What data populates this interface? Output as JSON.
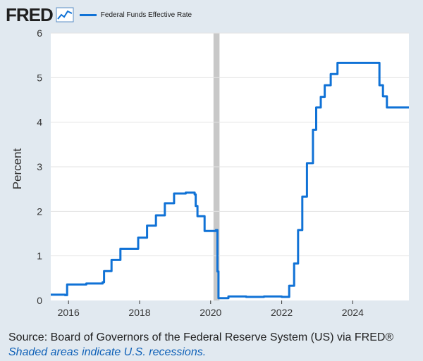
{
  "header": {
    "logo_text": "FRED",
    "logo_icon": "line-chart-icon",
    "legend_label": "Federal Funds Effective Rate"
  },
  "colors": {
    "background": "#e1e9f0",
    "plot_area": "#ffffff",
    "series": "#1072d6",
    "recession_shade": "#c8c8c8"
  },
  "chart_data": {
    "type": "line",
    "title": "",
    "xlabel": "",
    "ylabel": "Percent",
    "ylim": [
      0,
      6
    ],
    "xlim": [
      2015.5,
      2025.58
    ],
    "yticks": [
      "0",
      "1",
      "2",
      "3",
      "4",
      "5",
      "6"
    ],
    "xticks": [
      "2016",
      "2018",
      "2020",
      "2022",
      "2024"
    ],
    "grid": true,
    "legend": "top-left",
    "recessions": [
      [
        2020.08,
        2020.25
      ]
    ],
    "series": [
      {
        "name": "Federal Funds Effective Rate",
        "points": [
          [
            2015.5,
            0.13
          ],
          [
            2015.9,
            0.12
          ],
          [
            2015.96,
            0.36
          ],
          [
            2016.5,
            0.38
          ],
          [
            2016.96,
            0.41
          ],
          [
            2017.0,
            0.66
          ],
          [
            2017.21,
            0.91
          ],
          [
            2017.46,
            1.16
          ],
          [
            2017.96,
            1.41
          ],
          [
            2018.21,
            1.68
          ],
          [
            2018.46,
            1.91
          ],
          [
            2018.71,
            2.18
          ],
          [
            2018.97,
            2.4
          ],
          [
            2019.3,
            2.42
          ],
          [
            2019.55,
            2.38
          ],
          [
            2019.58,
            2.12
          ],
          [
            2019.63,
            1.89
          ],
          [
            2019.83,
            1.56
          ],
          [
            2020.15,
            1.58
          ],
          [
            2020.19,
            0.65
          ],
          [
            2020.22,
            0.05
          ],
          [
            2020.5,
            0.09
          ],
          [
            2021.0,
            0.08
          ],
          [
            2021.5,
            0.09
          ],
          [
            2022.0,
            0.08
          ],
          [
            2022.21,
            0.33
          ],
          [
            2022.35,
            0.83
          ],
          [
            2022.46,
            1.58
          ],
          [
            2022.58,
            2.33
          ],
          [
            2022.71,
            3.08
          ],
          [
            2022.88,
            3.83
          ],
          [
            2022.97,
            4.33
          ],
          [
            2023.1,
            4.57
          ],
          [
            2023.21,
            4.83
          ],
          [
            2023.38,
            5.08
          ],
          [
            2023.57,
            5.33
          ],
          [
            2024.71,
            5.33
          ],
          [
            2024.75,
            4.83
          ],
          [
            2024.85,
            4.58
          ],
          [
            2024.96,
            4.33
          ],
          [
            2025.58,
            4.33
          ]
        ]
      }
    ]
  },
  "footer": {
    "source": "Source: Board of Governors of the Federal Reserve System (US) via FRED®",
    "note": "Shaded areas indicate U.S. recessions."
  }
}
